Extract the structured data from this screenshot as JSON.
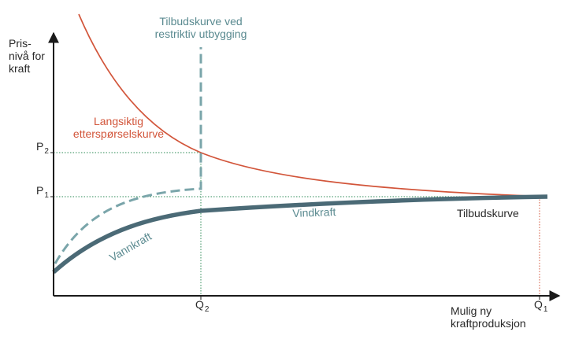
{
  "colors": {
    "axis": "#1a1a1a",
    "demand": "#d2553a",
    "supply": "#4b6a76",
    "restrictive": "#7aa5aa",
    "guide_green": "#2e8b57",
    "guide_red": "#d2553a",
    "text": "#2a2a2a",
    "demand_label": "#d2553a",
    "teal_label": "#5a8a90"
  },
  "y_axis": {
    "title_lines": [
      "Pris-",
      "nivå for",
      "kraft"
    ]
  },
  "x_axis": {
    "title_lines": [
      "Mulig ny",
      "kraftproduksjon"
    ]
  },
  "ticks": {
    "p2": {
      "base": "P",
      "sub": "2"
    },
    "p1": {
      "base": "P",
      "sub": "1"
    },
    "q2": {
      "base": "Q",
      "sub": "2"
    },
    "q1": {
      "base": "Q",
      "sub": "1"
    }
  },
  "curves": {
    "demand": {
      "label_lines": [
        "Langsiktig",
        "etterspørselskurve"
      ]
    },
    "restrictive": {
      "label_lines": [
        "Tilbudskurve ved",
        "restriktiv utbygging"
      ]
    },
    "supply": {
      "label": "Tilbudskurve"
    },
    "hydro": {
      "label": "Vannkraft"
    },
    "wind": {
      "label": "Vindkraft"
    }
  }
}
